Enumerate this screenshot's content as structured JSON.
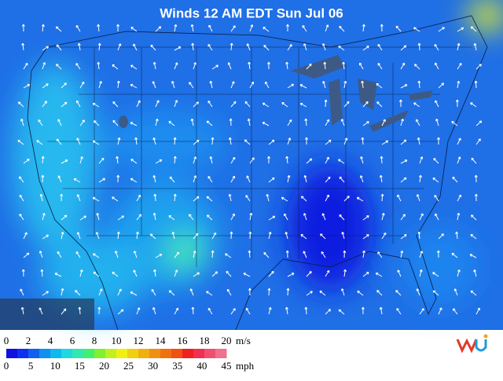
{
  "title": "Winds 12 AM EDT Sun Jul 06",
  "legend": {
    "ms_ticks": [
      0,
      2,
      4,
      6,
      8,
      10,
      12,
      14,
      16,
      18,
      20
    ],
    "ms_unit": "m/s",
    "mph_ticks": [
      0,
      5,
      10,
      15,
      20,
      25,
      30,
      35,
      40,
      45
    ],
    "mph_unit": "mph"
  }
}
